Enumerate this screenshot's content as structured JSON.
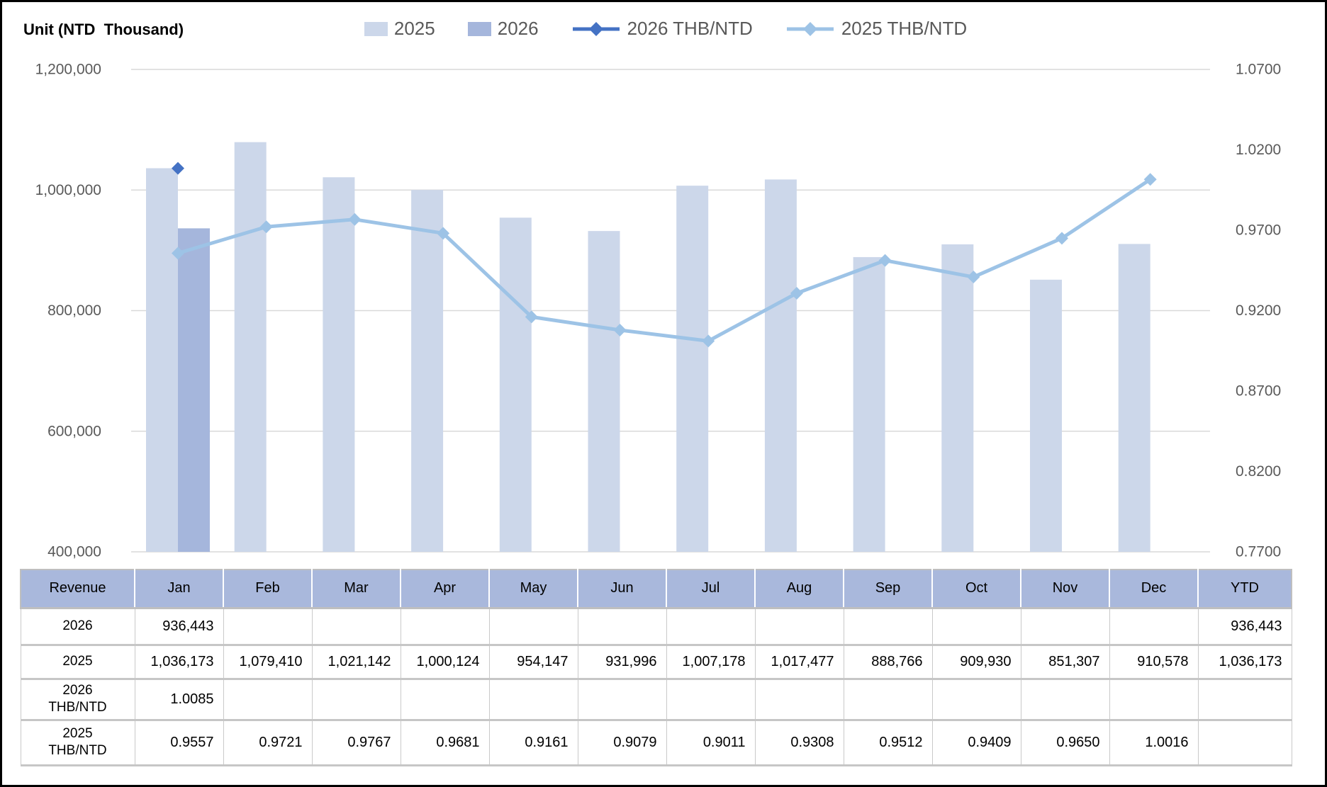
{
  "unit_label": "Unit (NTD  Thousand)",
  "legend": [
    {
      "label": "2025",
      "type": "bar",
      "color": "#CCD7EA"
    },
    {
      "label": "2026",
      "type": "bar",
      "color": "#A5B6DC"
    },
    {
      "label": "2026 THB/NTD",
      "type": "line",
      "color": "#4472C4"
    },
    {
      "label": "2025 THB/NTD",
      "type": "line",
      "color": "#9DC3E6"
    }
  ],
  "chart_data": {
    "type": "combo-bar-line",
    "categories": [
      "Jan",
      "Feb",
      "Mar",
      "Apr",
      "May",
      "Jun",
      "Jul",
      "Aug",
      "Sep",
      "Oct",
      "Nov",
      "Dec"
    ],
    "series": [
      {
        "name": "2025",
        "type": "bar",
        "axis": "left",
        "color": "#CCD7EA",
        "values": [
          1036173,
          1079410,
          1021142,
          1000124,
          954147,
          931996,
          1007178,
          1017477,
          888766,
          909930,
          851307,
          910578
        ]
      },
      {
        "name": "2026",
        "type": "bar",
        "axis": "left",
        "color": "#A5B6DC",
        "values": [
          936443,
          null,
          null,
          null,
          null,
          null,
          null,
          null,
          null,
          null,
          null,
          null
        ]
      },
      {
        "name": "2026 THB/NTD",
        "type": "line",
        "axis": "right",
        "color": "#4472C4",
        "values": [
          1.0085,
          null,
          null,
          null,
          null,
          null,
          null,
          null,
          null,
          null,
          null,
          null
        ]
      },
      {
        "name": "2025 THB/NTD",
        "type": "line",
        "axis": "right",
        "color": "#9DC3E6",
        "values": [
          0.9557,
          0.9721,
          0.9767,
          0.9681,
          0.9161,
          0.9079,
          0.9011,
          0.9308,
          0.9512,
          0.9409,
          0.965,
          1.0016
        ]
      }
    ],
    "left_axis": {
      "min": 400000,
      "max": 1200000,
      "step": 200000,
      "tick_labels": [
        "400,000",
        "600,000",
        "800,000",
        "1,000,000",
        "1,200,000"
      ]
    },
    "right_axis": {
      "min": 0.77,
      "max": 1.07,
      "step": 0.05,
      "tick_labels": [
        "0.7700",
        "0.8200",
        "0.8700",
        "0.9200",
        "0.9700",
        "1.0200",
        "1.0700"
      ]
    },
    "grid": true,
    "legend_position": "top",
    "colors": {
      "gridline": "#D9D9D9",
      "axis_text": "#595959"
    }
  },
  "table": {
    "header": [
      "Revenue",
      "Jan",
      "Feb",
      "Mar",
      "Apr",
      "May",
      "Jun",
      "Jul",
      "Aug",
      "Sep",
      "Oct",
      "Nov",
      "Dec",
      "YTD"
    ],
    "rows": [
      {
        "label": "2026",
        "cells": [
          "936,443",
          "",
          "",
          "",
          "",
          "",
          "",
          "",
          "",
          "",
          "",
          "",
          "936,443"
        ]
      },
      {
        "label": "2025",
        "cells": [
          "1,036,173",
          "1,079,410",
          "1,021,142",
          "1,000,124",
          "954,147",
          "931,996",
          "1,007,178",
          "1,017,477",
          "888,766",
          "909,930",
          "851,307",
          "910,578",
          "1,036,173"
        ]
      },
      {
        "label": "2026\nTHB/NTD",
        "cells": [
          "1.0085",
          "",
          "",
          "",
          "",
          "",
          "",
          "",
          "",
          "",
          "",
          "",
          ""
        ]
      },
      {
        "label": "2025\nTHB/NTD",
        "cells": [
          "0.9557",
          "0.9721",
          "0.9767",
          "0.9681",
          "0.9161",
          "0.9079",
          "0.9011",
          "0.9308",
          "0.9512",
          "0.9409",
          "0.9650",
          "1.0016",
          ""
        ]
      }
    ]
  }
}
